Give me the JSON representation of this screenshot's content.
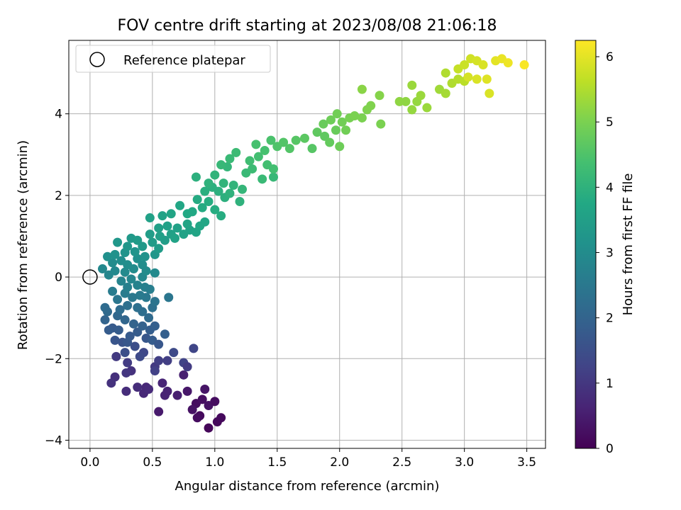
{
  "chart_data": {
    "type": "scatter",
    "title": "FOV centre drift starting at 2023/08/08 21:06:18",
    "xlabel": "Angular distance from reference (arcmin)",
    "ylabel": "Rotation from reference (arcmin)",
    "xlim": [
      -0.17,
      3.65
    ],
    "ylim": [
      -4.2,
      5.8
    ],
    "x_ticks": [
      0.0,
      0.5,
      1.0,
      1.5,
      2.0,
      2.5,
      3.0,
      3.5
    ],
    "x_tick_labels": [
      "0.0",
      "0.5",
      "1.0",
      "1.5",
      "2.0",
      "2.5",
      "3.0",
      "3.5"
    ],
    "y_ticks": [
      -4,
      -2,
      0,
      2,
      4
    ],
    "y_tick_labels": [
      "−4",
      "−2",
      "0",
      "2",
      "4"
    ],
    "grid": true,
    "legend": {
      "placement": "top-left",
      "entries": [
        "Reference platepar"
      ]
    },
    "reference_point": {
      "x": 0.0,
      "y": 0.0
    },
    "colorbar": {
      "label": "Hours from first FF file",
      "colormap": "viridis",
      "range": [
        0,
        6.25
      ],
      "ticks": [
        0,
        1,
        2,
        3,
        4,
        5,
        6
      ],
      "tick_labels": [
        "0",
        "1",
        "2",
        "3",
        "4",
        "5",
        "6"
      ]
    },
    "point_fields": [
      "x",
      "y",
      "hours"
    ],
    "points": [
      [
        0.85,
        -3.1,
        0.2
      ],
      [
        0.9,
        -3.0,
        0.25
      ],
      [
        0.95,
        -3.15,
        0.3
      ],
      [
        1.0,
        -3.05,
        0.2
      ],
      [
        0.92,
        -2.75,
        0.35
      ],
      [
        0.88,
        -3.4,
        0.15
      ],
      [
        0.95,
        -3.7,
        0.1
      ],
      [
        1.02,
        -3.55,
        0.12
      ],
      [
        1.05,
        -3.45,
        0.15
      ],
      [
        0.82,
        -3.25,
        0.3
      ],
      [
        0.86,
        -3.45,
        0.2
      ],
      [
        0.78,
        -2.8,
        0.4
      ],
      [
        0.75,
        -2.4,
        0.55
      ],
      [
        0.62,
        -2.8,
        0.6
      ],
      [
        0.55,
        -3.3,
        0.45
      ],
      [
        0.6,
        -2.9,
        0.6
      ],
      [
        0.58,
        -2.6,
        0.65
      ],
      [
        0.7,
        -2.9,
        0.55
      ],
      [
        0.45,
        -2.7,
        0.7
      ],
      [
        0.43,
        -2.85,
        0.7
      ],
      [
        0.38,
        -2.7,
        0.8
      ],
      [
        0.29,
        -2.8,
        0.8
      ],
      [
        0.33,
        -2.3,
        0.9
      ],
      [
        0.29,
        -2.35,
        1.0
      ],
      [
        0.2,
        -2.45,
        0.85
      ],
      [
        0.21,
        -1.95,
        1.05
      ],
      [
        0.17,
        -2.6,
        0.9
      ],
      [
        0.3,
        -2.1,
        1.1
      ],
      [
        0.47,
        -2.75,
        0.75
      ],
      [
        0.52,
        -2.2,
        1.05
      ],
      [
        0.55,
        -2.05,
        1.15
      ],
      [
        0.52,
        -2.3,
        1.2
      ],
      [
        0.62,
        -2.05,
        1.15
      ],
      [
        0.75,
        -2.1,
        1.25
      ],
      [
        0.78,
        -2.2,
        1.1
      ],
      [
        0.83,
        -1.75,
        1.3
      ],
      [
        0.67,
        -1.85,
        1.4
      ],
      [
        0.43,
        -1.85,
        1.35
      ],
      [
        0.4,
        -1.95,
        1.4
      ],
      [
        0.36,
        -1.7,
        1.5
      ],
      [
        0.28,
        -1.85,
        1.5
      ],
      [
        0.26,
        -1.6,
        1.6
      ],
      [
        0.2,
        -1.55,
        1.65
      ],
      [
        0.18,
        -1.25,
        1.75
      ],
      [
        0.15,
        -1.3,
        1.8
      ],
      [
        0.23,
        -1.3,
        1.8
      ],
      [
        0.3,
        -1.6,
        1.7
      ],
      [
        0.32,
        -1.45,
        1.75
      ],
      [
        0.38,
        -1.35,
        1.8
      ],
      [
        0.45,
        -1.5,
        1.7
      ],
      [
        0.48,
        -1.3,
        1.85
      ],
      [
        0.5,
        -1.55,
        1.8
      ],
      [
        0.52,
        -1.2,
        1.9
      ],
      [
        0.6,
        -1.4,
        1.9
      ],
      [
        0.55,
        -1.65,
        1.7
      ],
      [
        0.42,
        -1.2,
        1.95
      ],
      [
        0.35,
        -1.15,
        2.0
      ],
      [
        0.28,
        -1.05,
        2.05
      ],
      [
        0.22,
        -0.95,
        2.1
      ],
      [
        0.12,
        -1.05,
        2.0
      ],
      [
        0.12,
        -0.75,
        2.2
      ],
      [
        0.14,
        -0.85,
        2.15
      ],
      [
        0.24,
        -0.8,
        2.2
      ],
      [
        0.3,
        -0.7,
        2.3
      ],
      [
        0.38,
        -0.75,
        2.3
      ],
      [
        0.42,
        -0.85,
        2.25
      ],
      [
        0.47,
        -1.0,
        2.15
      ],
      [
        0.5,
        -0.75,
        2.3
      ],
      [
        0.52,
        -0.6,
        2.4
      ],
      [
        0.63,
        -0.5,
        2.45
      ],
      [
        0.45,
        -0.5,
        2.5
      ],
      [
        0.4,
        -0.45,
        2.55
      ],
      [
        0.34,
        -0.5,
        2.5
      ],
      [
        0.28,
        -0.4,
        2.6
      ],
      [
        0.18,
        -0.35,
        2.6
      ],
      [
        0.22,
        -0.55,
        2.45
      ],
      [
        0.3,
        -0.25,
        2.7
      ],
      [
        0.38,
        -0.2,
        2.75
      ],
      [
        0.44,
        -0.25,
        2.7
      ],
      [
        0.48,
        -0.3,
        2.65
      ],
      [
        0.25,
        -0.1,
        2.8
      ],
      [
        0.33,
        -0.05,
        2.85
      ],
      [
        0.42,
        0.0,
        2.9
      ],
      [
        0.52,
        0.1,
        2.95
      ],
      [
        0.15,
        0.05,
        2.85
      ],
      [
        0.2,
        0.15,
        2.9
      ],
      [
        0.28,
        0.12,
        2.95
      ],
      [
        0.35,
        0.2,
        3.0
      ],
      [
        0.42,
        0.3,
        3.05
      ],
      [
        0.1,
        0.2,
        2.9
      ],
      [
        0.18,
        0.35,
        3.0
      ],
      [
        0.25,
        0.4,
        3.05
      ],
      [
        0.3,
        0.3,
        3.05
      ],
      [
        0.38,
        0.45,
        3.1
      ],
      [
        0.45,
        0.15,
        3.0
      ],
      [
        0.14,
        0.5,
        3.1
      ],
      [
        0.2,
        0.55,
        3.15
      ],
      [
        0.28,
        0.6,
        3.2
      ],
      [
        0.36,
        0.62,
        3.2
      ],
      [
        0.44,
        0.5,
        3.15
      ],
      [
        0.52,
        0.55,
        3.25
      ],
      [
        0.22,
        0.85,
        3.3
      ],
      [
        0.3,
        0.75,
        3.3
      ],
      [
        0.33,
        0.95,
        3.35
      ],
      [
        0.38,
        0.9,
        3.4
      ],
      [
        0.42,
        0.75,
        3.35
      ],
      [
        0.5,
        0.85,
        3.4
      ],
      [
        0.55,
        0.7,
        3.4
      ],
      [
        0.6,
        0.9,
        3.45
      ],
      [
        0.48,
        1.05,
        3.45
      ],
      [
        0.56,
        1.0,
        3.5
      ],
      [
        0.65,
        1.05,
        3.55
      ],
      [
        0.7,
        1.2,
        3.55
      ],
      [
        0.75,
        1.05,
        3.6
      ],
      [
        0.8,
        1.15,
        3.6
      ],
      [
        0.55,
        1.2,
        3.5
      ],
      [
        0.48,
        1.45,
        3.55
      ],
      [
        0.62,
        1.25,
        3.55
      ],
      [
        0.68,
        0.95,
        3.6
      ],
      [
        0.78,
        1.3,
        3.65
      ],
      [
        0.85,
        1.1,
        3.65
      ],
      [
        0.88,
        1.25,
        3.7
      ],
      [
        0.92,
        1.35,
        3.7
      ],
      [
        0.58,
        1.5,
        3.6
      ],
      [
        0.65,
        1.55,
        3.65
      ],
      [
        0.72,
        1.75,
        3.7
      ],
      [
        0.78,
        1.55,
        3.75
      ],
      [
        0.82,
        1.6,
        3.75
      ],
      [
        0.86,
        1.9,
        3.8
      ],
      [
        0.9,
        1.7,
        3.8
      ],
      [
        0.95,
        1.85,
        3.85
      ],
      [
        1.0,
        1.65,
        3.85
      ],
      [
        1.05,
        1.5,
        3.85
      ],
      [
        0.92,
        2.1,
        3.9
      ],
      [
        0.98,
        2.2,
        3.95
      ],
      [
        1.03,
        2.1,
        3.95
      ],
      [
        1.08,
        1.95,
        3.95
      ],
      [
        1.12,
        2.05,
        4.0
      ],
      [
        0.85,
        2.45,
        3.95
      ],
      [
        0.95,
        2.3,
        4.0
      ],
      [
        1.0,
        2.5,
        4.05
      ],
      [
        1.07,
        2.3,
        4.05
      ],
      [
        1.1,
        2.7,
        4.1
      ],
      [
        1.15,
        2.25,
        4.05
      ],
      [
        1.2,
        1.85,
        4.0
      ],
      [
        1.22,
        2.15,
        4.1
      ],
      [
        1.05,
        2.75,
        4.15
      ],
      [
        1.12,
        2.9,
        4.2
      ],
      [
        1.17,
        3.05,
        4.25
      ],
      [
        1.25,
        2.55,
        4.2
      ],
      [
        1.3,
        2.65,
        4.25
      ],
      [
        1.38,
        2.4,
        4.2
      ],
      [
        1.47,
        2.45,
        4.15
      ],
      [
        1.28,
        2.85,
        4.3
      ],
      [
        1.35,
        2.95,
        4.35
      ],
      [
        1.33,
        3.25,
        4.4
      ],
      [
        1.4,
        3.1,
        4.4
      ],
      [
        1.45,
        3.35,
        4.45
      ],
      [
        1.5,
        3.2,
        4.5
      ],
      [
        1.42,
        2.75,
        4.35
      ],
      [
        1.47,
        2.65,
        4.35
      ],
      [
        1.55,
        3.3,
        4.55
      ],
      [
        1.6,
        3.15,
        4.55
      ],
      [
        1.65,
        3.35,
        4.6
      ],
      [
        1.72,
        3.4,
        4.65
      ],
      [
        1.78,
        3.15,
        4.6
      ],
      [
        1.82,
        3.55,
        4.7
      ],
      [
        1.88,
        3.45,
        4.7
      ],
      [
        1.92,
        3.3,
        4.75
      ],
      [
        1.97,
        3.6,
        4.8
      ],
      [
        1.87,
        3.75,
        4.8
      ],
      [
        1.93,
        3.85,
        4.85
      ],
      [
        1.98,
        4.0,
        4.9
      ],
      [
        2.02,
        3.8,
        4.9
      ],
      [
        2.05,
        3.6,
        4.9
      ],
      [
        2.0,
        3.2,
        4.85
      ],
      [
        2.08,
        3.9,
        4.95
      ],
      [
        2.12,
        3.95,
        5.0
      ],
      [
        2.18,
        3.9,
        5.0
      ],
      [
        2.22,
        4.1,
        5.05
      ],
      [
        2.25,
        4.2,
        5.05
      ],
      [
        2.32,
        4.45,
        5.1
      ],
      [
        2.33,
        3.75,
        5.0
      ],
      [
        2.18,
        4.6,
        5.15
      ],
      [
        2.48,
        4.3,
        5.2
      ],
      [
        2.53,
        4.3,
        5.2
      ],
      [
        2.58,
        4.1,
        5.25
      ],
      [
        2.62,
        4.3,
        5.25
      ],
      [
        2.58,
        4.7,
        5.3
      ],
      [
        2.65,
        4.45,
        5.3
      ],
      [
        2.7,
        4.15,
        5.3
      ],
      [
        2.8,
        4.6,
        5.35
      ],
      [
        2.85,
        4.5,
        5.4
      ],
      [
        2.85,
        5.0,
        5.5
      ],
      [
        2.9,
        4.75,
        5.5
      ],
      [
        2.95,
        4.85,
        5.55
      ],
      [
        3.0,
        4.8,
        5.6
      ],
      [
        2.95,
        5.1,
        5.7
      ],
      [
        3.0,
        5.2,
        5.75
      ],
      [
        3.05,
        5.35,
        5.8
      ],
      [
        3.1,
        5.3,
        5.85
      ],
      [
        3.15,
        5.2,
        5.9
      ],
      [
        3.2,
        4.5,
        5.9
      ],
      [
        3.25,
        5.3,
        6.0
      ],
      [
        3.3,
        5.35,
        6.05
      ],
      [
        3.35,
        5.25,
        6.1
      ],
      [
        3.48,
        5.2,
        6.2
      ],
      [
        3.1,
        4.85,
        5.9
      ],
      [
        3.18,
        4.85,
        5.95
      ],
      [
        3.03,
        4.9,
        5.85
      ]
    ]
  }
}
